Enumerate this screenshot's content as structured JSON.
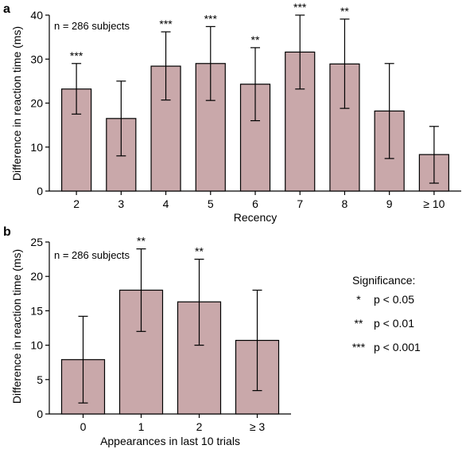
{
  "chart_data": [
    {
      "panel_label": "a",
      "type": "bar",
      "annotation": "n = 286 subjects",
      "xlabel": "Recency",
      "ylabel": "Difference in reaction time (ms)",
      "ylim": [
        0,
        40
      ],
      "yticks": [
        0,
        10,
        20,
        30,
        40
      ],
      "categories": [
        "2",
        "3",
        "4",
        "5",
        "6",
        "7",
        "8",
        "9",
        "≥ 10"
      ],
      "values": [
        23.2,
        16.5,
        28.4,
        29.0,
        24.3,
        31.6,
        28.9,
        18.2,
        8.3
      ],
      "err_low": [
        17.5,
        8.0,
        20.7,
        20.6,
        16.0,
        23.2,
        18.8,
        7.4,
        1.8
      ],
      "err_high": [
        29.0,
        25.0,
        36.2,
        37.4,
        32.6,
        40.0,
        39.1,
        29.0,
        14.7
      ],
      "significance": [
        "***",
        "",
        "***",
        "***",
        "**",
        "***",
        "**",
        "",
        ""
      ],
      "bar_color": "#c9a8aa",
      "grid": false
    },
    {
      "panel_label": "b",
      "type": "bar",
      "annotation": "n = 286 subjects",
      "xlabel": "Appearances in last 10 trials",
      "ylabel": "Difference in reaction time (ms)",
      "ylim": [
        0,
        25
      ],
      "yticks": [
        0,
        5,
        10,
        15,
        20,
        25
      ],
      "categories": [
        "0",
        "1",
        "2",
        "≥ 3"
      ],
      "values": [
        7.9,
        18.0,
        16.3,
        10.7
      ],
      "err_low": [
        1.6,
        12.0,
        10.0,
        3.4
      ],
      "err_high": [
        14.2,
        24.0,
        22.5,
        18.0
      ],
      "significance": [
        "",
        "**",
        "**",
        ""
      ],
      "bar_color": "#c9a8aa",
      "grid": false
    }
  ],
  "legend": {
    "title": "Significance:",
    "items": [
      {
        "symbol": "*",
        "text": "p < 0.05"
      },
      {
        "symbol": "**",
        "text": "p < 0.01"
      },
      {
        "symbol": "***",
        "text": "p < 0.001"
      }
    ]
  }
}
